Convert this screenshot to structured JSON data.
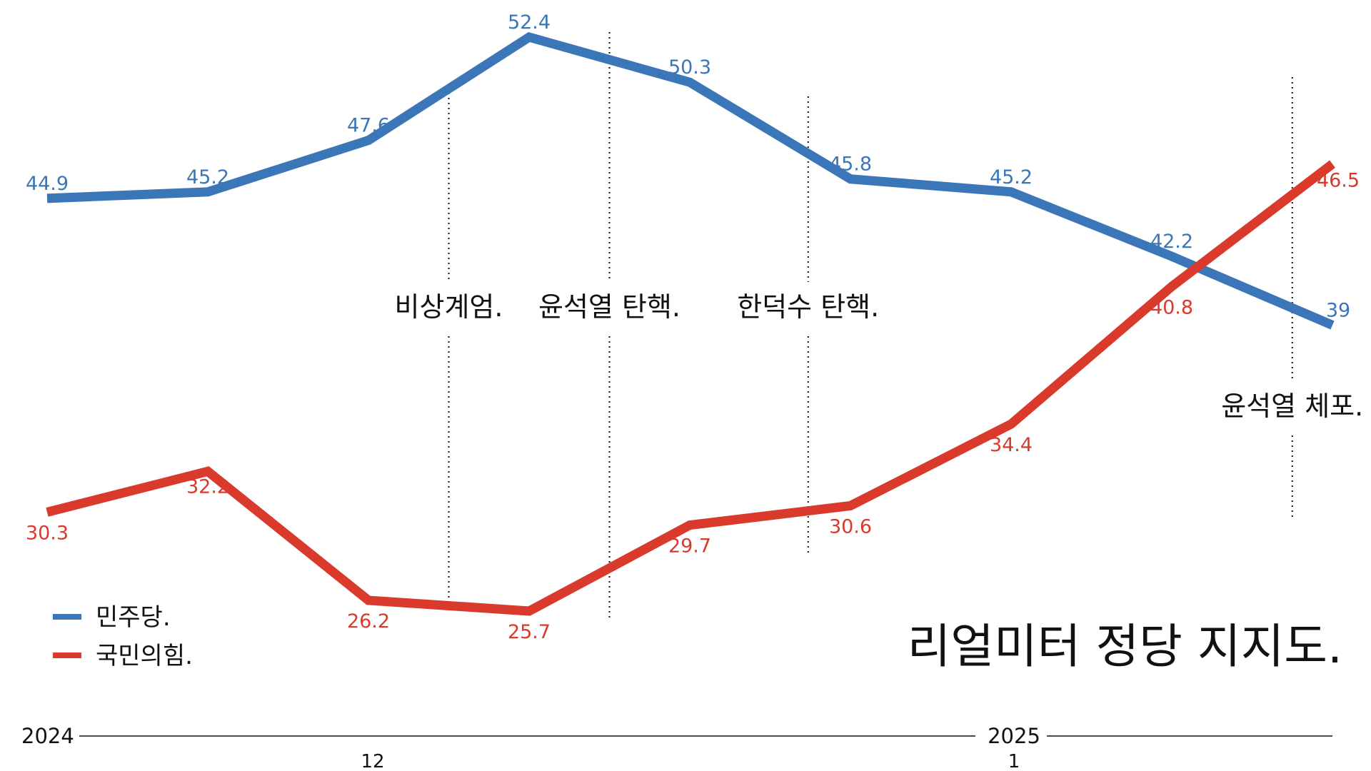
{
  "chart_data": {
    "type": "line",
    "title": "리얼미터 정당 지지도.",
    "x_count": 9,
    "series": [
      {
        "name": "민주당.",
        "color": "#3a76b8",
        "values": [
          44.9,
          45.2,
          47.6,
          52.4,
          50.3,
          45.8,
          45.2,
          42.2,
          39
        ]
      },
      {
        "name": "국민의힘.",
        "color": "#d93a2b",
        "values": [
          30.3,
          32.2,
          26.2,
          25.7,
          29.7,
          30.6,
          34.4,
          40.8,
          46.5
        ]
      }
    ],
    "data_labels": {
      "series_0": [
        "44.9",
        "45.2",
        "47.6",
        "52.4",
        "50.3",
        "45.8",
        "45.2",
        "42.2",
        "39"
      ],
      "series_1": [
        "30.3",
        "32.2",
        "26.2",
        "25.7",
        "29.7",
        "30.6",
        "34.4",
        "40.8",
        "46.5"
      ]
    },
    "events": [
      {
        "label": "비상계엄.",
        "x": 2.5
      },
      {
        "label": "윤석열 탄핵.",
        "x": 3.5
      },
      {
        "label": "한덕수 탄핵.",
        "x": 4.75
      },
      {
        "label": "윤석열 체포.",
        "x": 7.75
      }
    ],
    "x_axis": {
      "years": [
        {
          "label": "2024",
          "x": 0
        },
        {
          "label": "2025",
          "x": 6
        }
      ],
      "months": [
        {
          "label": "12",
          "x": 2
        },
        {
          "label": "1",
          "x": 6
        }
      ]
    },
    "legend_position": "bottom-left",
    "grid": false
  }
}
